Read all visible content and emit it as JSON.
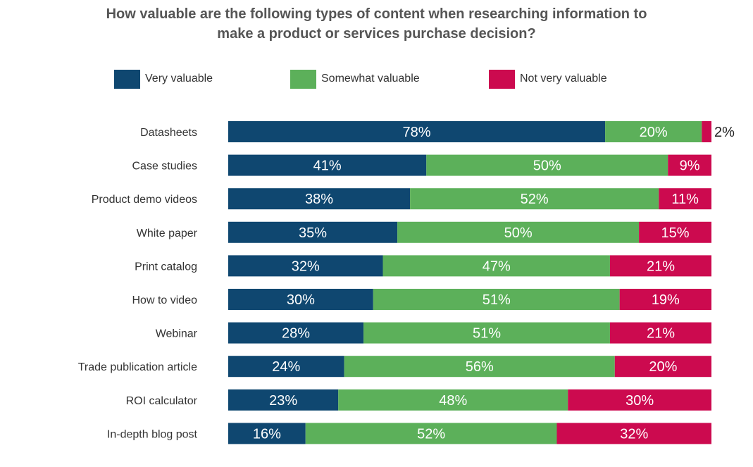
{
  "chart_data": {
    "type": "bar",
    "orientation": "horizontal",
    "stacked": true,
    "title_lines": [
      "How valuable are the following types of content when researching information to",
      "make a product or services purchase decision?"
    ],
    "categories": [
      "Datasheets",
      "Case studies",
      "Product demo videos",
      "White paper",
      "Print catalog",
      "How to video",
      "Webinar",
      "Trade publication article",
      "ROI calculator",
      "In-depth blog post"
    ],
    "series": [
      {
        "name": "Very valuable",
        "color": "#0f4770",
        "values": [
          78,
          41,
          38,
          35,
          32,
          30,
          28,
          24,
          23,
          16
        ],
        "labels": [
          "78%",
          "41%",
          "38%",
          "35%",
          "32%",
          "30%",
          "28%",
          "24%",
          "23%",
          "16%"
        ]
      },
      {
        "name": "Somewhat valuable",
        "color": "#5cb05a",
        "values": [
          20,
          50,
          52,
          50,
          47,
          51,
          51,
          56,
          48,
          52
        ],
        "labels": [
          "20%",
          "50%",
          "52%",
          "50%",
          "47%",
          "51%",
          "51%",
          "56%",
          "48%",
          "52%"
        ]
      },
      {
        "name": "Not very valuable",
        "color": "#cc0a4f",
        "values": [
          2,
          9,
          11,
          15,
          21,
          19,
          21,
          20,
          30,
          32
        ],
        "labels": [
          "2%",
          "9%",
          "11%",
          "15%",
          "21%",
          "19%",
          "21%",
          "20%",
          "30%",
          "32%"
        ]
      }
    ],
    "legend_position": "top",
    "grid": false
  }
}
